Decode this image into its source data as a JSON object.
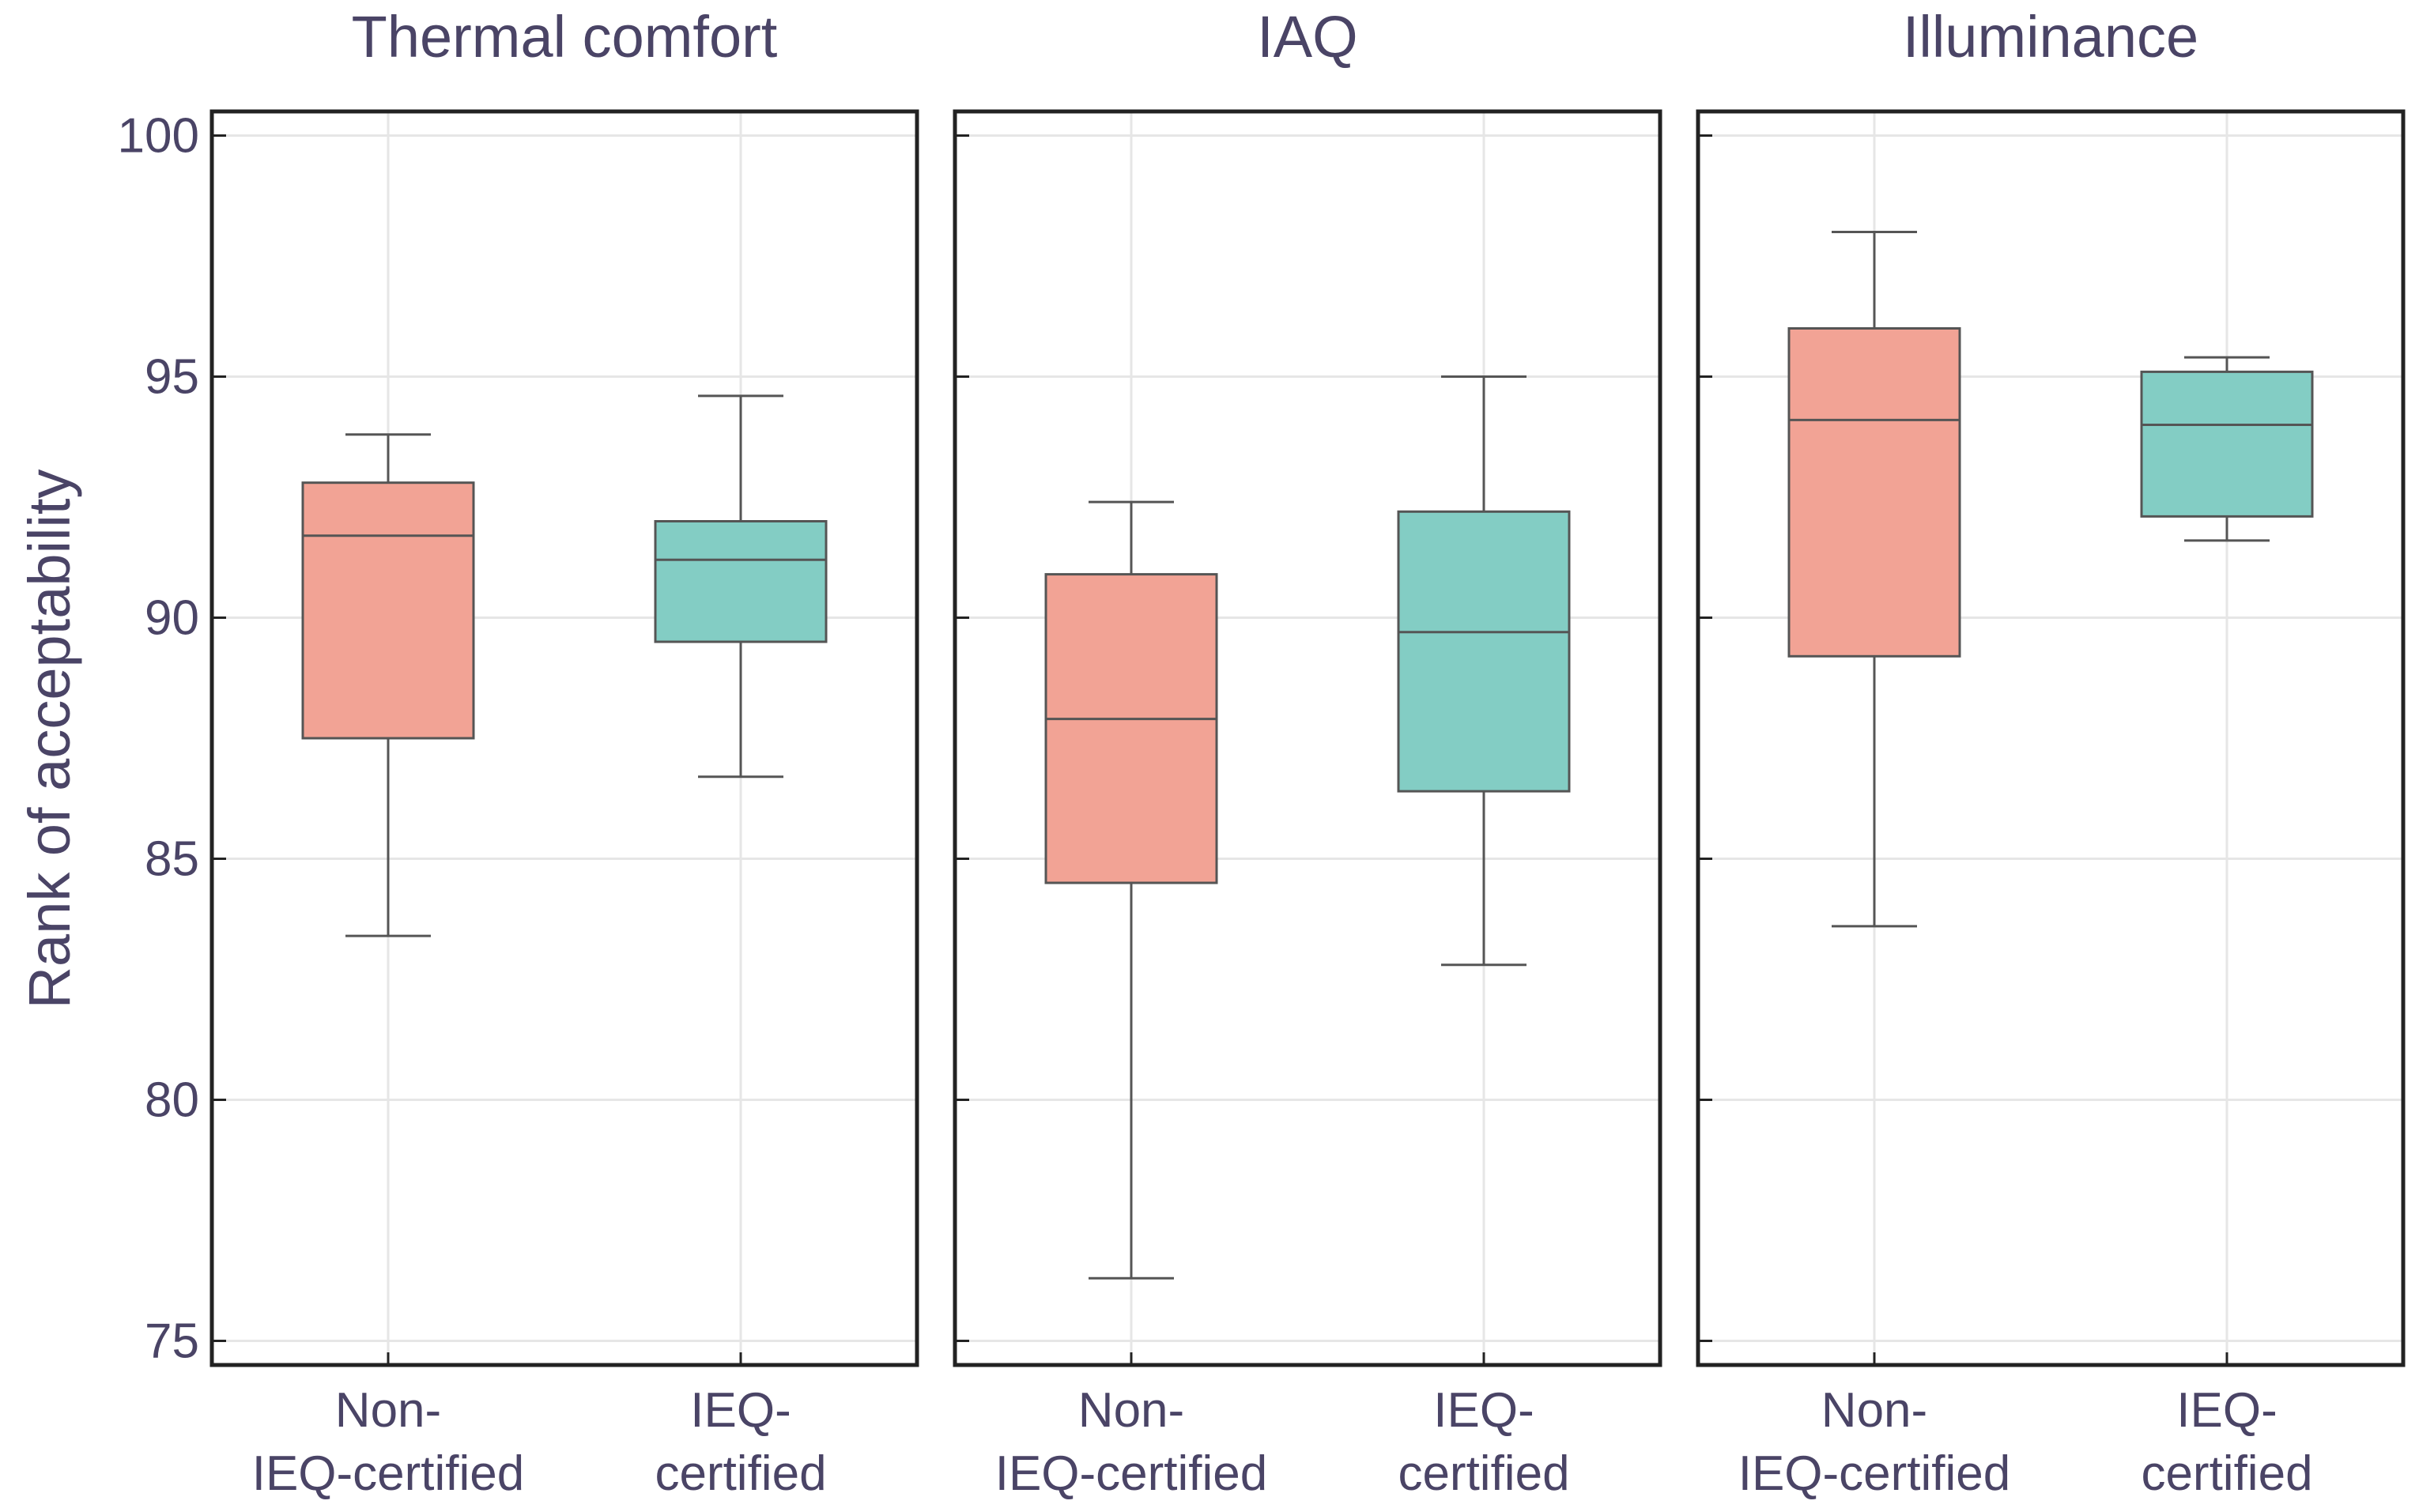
{
  "chart_data": {
    "type": "box",
    "ylabel": "Rank of acceptability",
    "ylim": [
      74.5,
      100.5
    ],
    "yticks": [
      75,
      80,
      85,
      90,
      95,
      100
    ],
    "grid": true,
    "colors": {
      "Non-IEQ-certified": "#f2a395",
      "IEQ-certified": "#83cdc4",
      "box_stroke": "#555555",
      "axis": "#222222",
      "grid": "#e6e6e6",
      "text": "#4a4466"
    },
    "categories": [
      {
        "name": "Non-IEQ-certified",
        "label_lines": [
          "Non-",
          "IEQ-certified"
        ]
      },
      {
        "name": "IEQ-certified",
        "label_lines": [
          "IEQ-",
          "certified"
        ]
      }
    ],
    "panels": [
      {
        "title": "Thermal comfort",
        "boxes": [
          {
            "group": "Non-IEQ-certified",
            "whisker_low": 83.4,
            "q1": 87.5,
            "median": 91.7,
            "q3": 92.8,
            "whisker_high": 93.8
          },
          {
            "group": "IEQ-certified",
            "whisker_low": 86.7,
            "q1": 89.5,
            "median": 91.2,
            "q3": 92.0,
            "whisker_high": 94.6
          }
        ]
      },
      {
        "title": "IAQ",
        "boxes": [
          {
            "group": "Non-IEQ-certified",
            "whisker_low": 76.3,
            "q1": 84.5,
            "median": 87.9,
            "q3": 90.9,
            "whisker_high": 92.4
          },
          {
            "group": "IEQ-certified",
            "whisker_low": 82.8,
            "q1": 86.4,
            "median": 89.7,
            "q3": 92.2,
            "whisker_high": 95.0
          }
        ]
      },
      {
        "title": "Illuminance",
        "boxes": [
          {
            "group": "Non-IEQ-certified",
            "whisker_low": 83.6,
            "q1": 89.2,
            "median": 94.1,
            "q3": 96.0,
            "whisker_high": 98.0
          },
          {
            "group": "IEQ-certified",
            "whisker_low": 91.6,
            "q1": 92.1,
            "median": 94.0,
            "q3": 95.1,
            "whisker_high": 95.4
          }
        ]
      }
    ]
  }
}
